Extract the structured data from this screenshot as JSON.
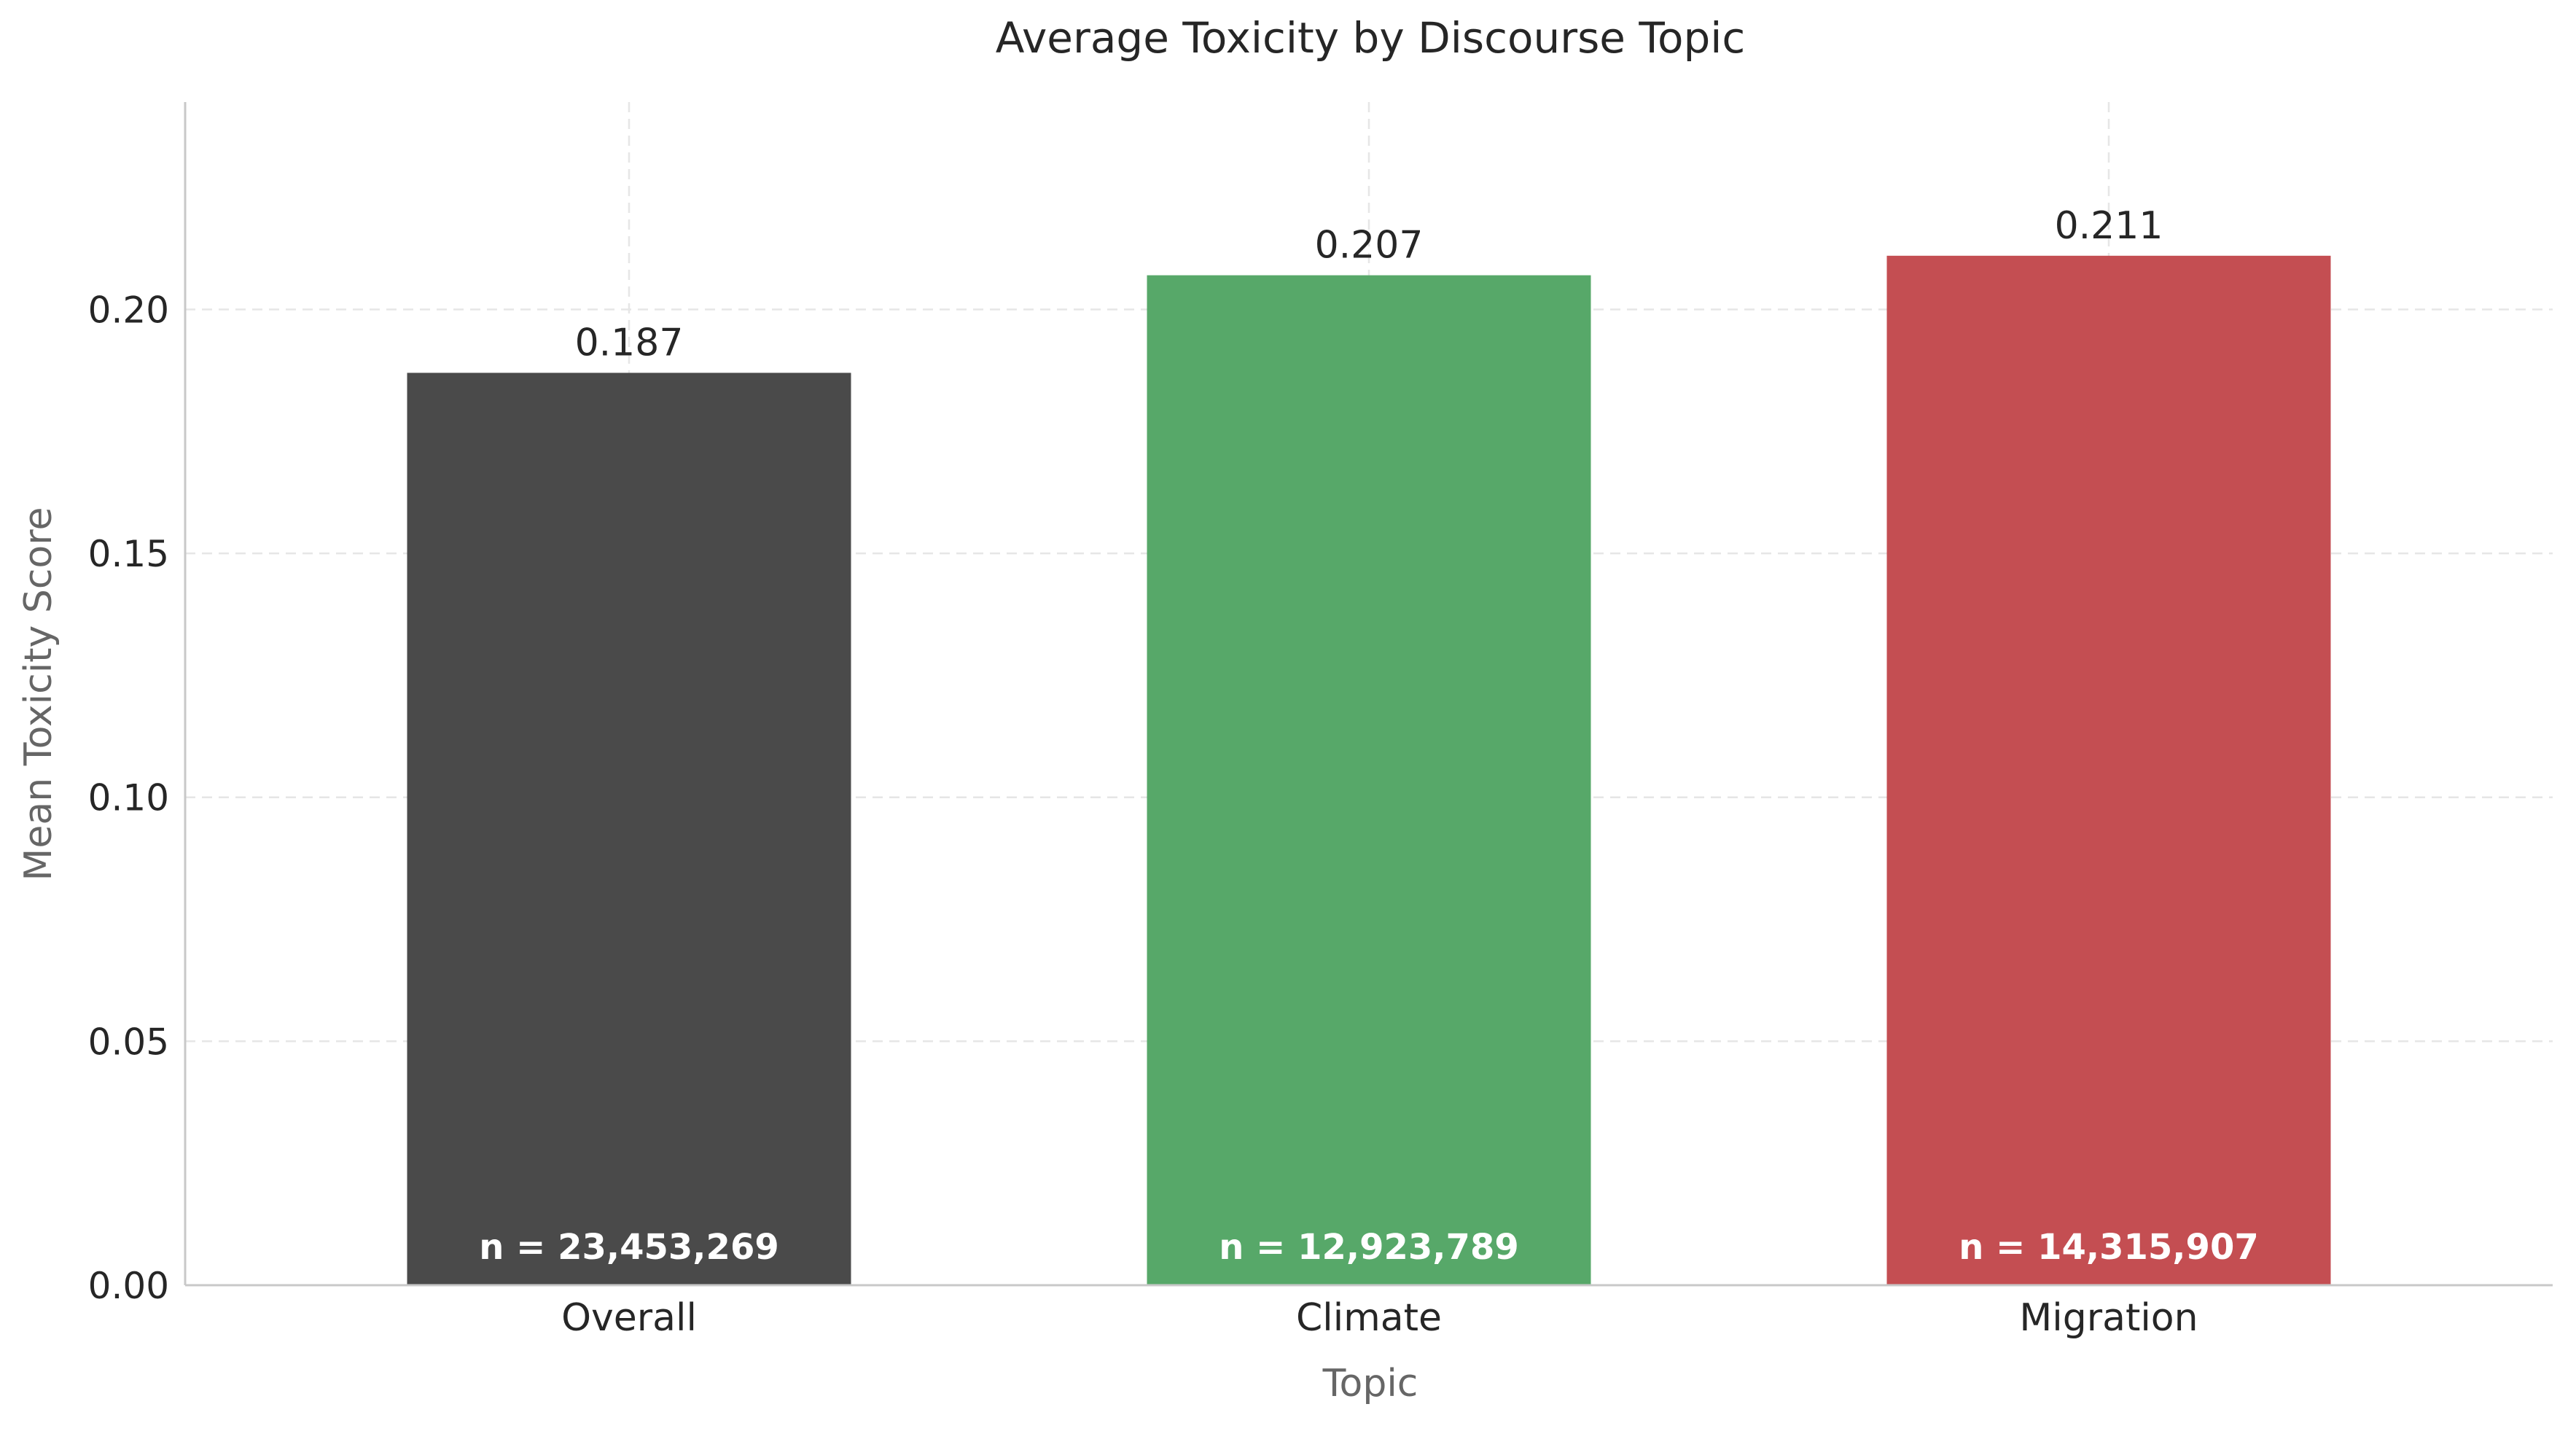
{
  "chart_data": {
    "type": "bar",
    "title": "Average Toxicity by Discourse Topic",
    "xlabel": "Topic",
    "ylabel": "Mean Toxicity Score",
    "categories": [
      "Overall",
      "Climate",
      "Migration"
    ],
    "values": [
      0.187,
      0.207,
      0.211
    ],
    "value_labels": [
      "0.187",
      "0.207",
      "0.211"
    ],
    "count_labels": [
      "n = 23,453,269",
      "n = 12,923,789",
      "n = 14,315,907"
    ],
    "colors": [
      "#4a4a4a",
      "#57a869",
      "#c44e52"
    ],
    "ylim": [
      0,
      0.2425
    ],
    "yticks": [
      0.0,
      0.05,
      0.1,
      0.15,
      0.2
    ],
    "ytick_labels": [
      "0.00",
      "0.05",
      "0.10",
      "0.15",
      "0.20"
    ],
    "grid": true,
    "legend": "none"
  }
}
